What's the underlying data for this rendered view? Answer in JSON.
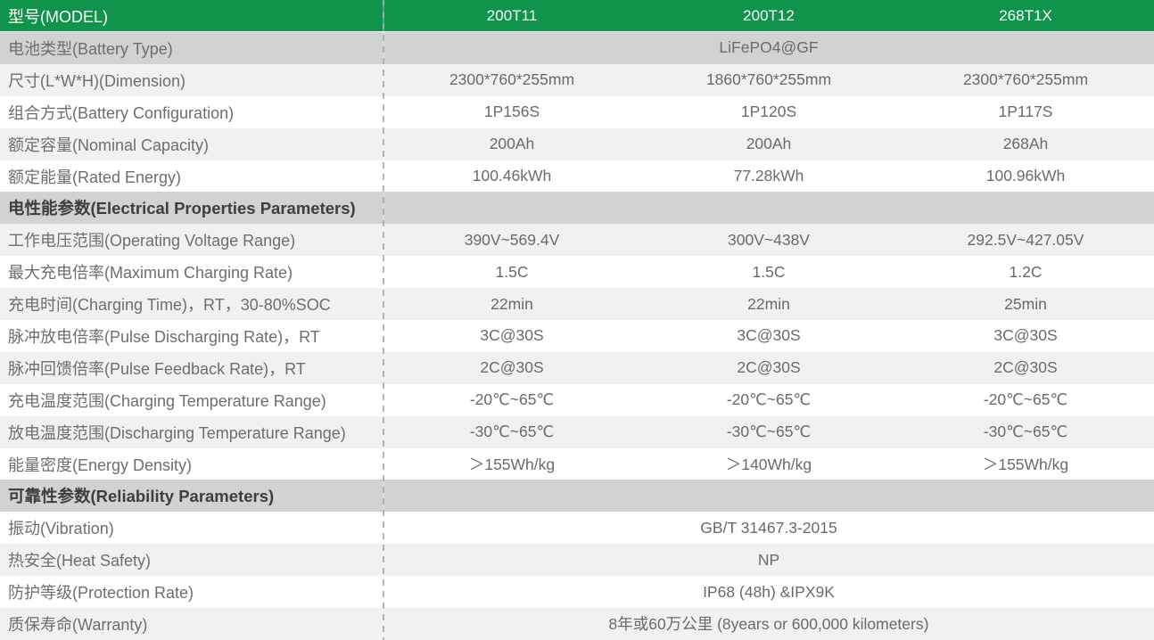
{
  "colors": {
    "header_green": "#10934a",
    "section_gray": "#d0d2d4",
    "row_alt_gray": "#eff1f3",
    "row_white": "#ffffff",
    "label_text": "#6d6e70",
    "section_text": "#3d3e40",
    "header_text": "#ffffff"
  },
  "header": {
    "label": "型号(MODEL)",
    "models": [
      "200T11",
      "200T12",
      "268T1X"
    ]
  },
  "rows": [
    {
      "label": "电池类型(Battery Type)",
      "span": "LiFePO4@GF",
      "shade": "dark"
    },
    {
      "label": "尺寸(L*W*H)(Dimension)",
      "values": [
        "2300*760*255mm",
        "1860*760*255mm",
        "2300*760*255mm"
      ],
      "shade": "light"
    },
    {
      "label": "组合方式(Battery Configuration)",
      "values": [
        "1P156S",
        "1P120S",
        "1P117S"
      ],
      "shade": "white"
    },
    {
      "label": "额定容量(Nominal Capacity)",
      "values": [
        "200Ah",
        "200Ah",
        "268Ah"
      ],
      "shade": "light"
    },
    {
      "label": "额定能量(Rated Energy)",
      "values": [
        "100.46kWh",
        "77.28kWh",
        "100.96kWh"
      ],
      "shade": "white"
    },
    {
      "label": "电性能参数(Electrical Properties Parameters)",
      "section": true,
      "shade": "dark"
    },
    {
      "label": "工作电压范围(Operating Voltage Range)",
      "values": [
        "390V~569.4V",
        "300V~438V",
        "292.5V~427.05V"
      ],
      "shade": "light"
    },
    {
      "label": "最大充电倍率(Maximum Charging Rate)",
      "values": [
        "1.5C",
        "1.5C",
        "1.2C"
      ],
      "shade": "white"
    },
    {
      "label": "充电时间(Charging Time)，RT，30-80%SOC",
      "values": [
        "22min",
        "22min",
        "25min"
      ],
      "shade": "light"
    },
    {
      "label": "脉冲放电倍率(Pulse Discharging Rate)，RT",
      "values": [
        "3C@30S",
        "3C@30S",
        "3C@30S"
      ],
      "shade": "white"
    },
    {
      "label": "脉冲回馈倍率(Pulse Feedback Rate)，RT",
      "values": [
        "2C@30S",
        "2C@30S",
        "2C@30S"
      ],
      "shade": "light"
    },
    {
      "label": "充电温度范围(Charging Temperature Range)",
      "values": [
        "-20℃~65℃",
        "-20℃~65℃",
        "-20℃~65℃"
      ],
      "shade": "white"
    },
    {
      "label": "放电温度范围(Discharging Temperature Range)",
      "values": [
        "-30℃~65℃",
        "-30℃~65℃",
        "-30℃~65℃"
      ],
      "shade": "light"
    },
    {
      "label": "能量密度(Energy Density)",
      "values": [
        "＞155Wh/kg",
        "＞140Wh/kg",
        "＞155Wh/kg"
      ],
      "shade": "white"
    },
    {
      "label": "可靠性参数(Reliability Parameters)",
      "section": true,
      "shade": "dark"
    },
    {
      "label": "振动(Vibration)",
      "span": "GB/T 31467.3-2015",
      "shade": "white"
    },
    {
      "label": "热安全(Heat Safety)",
      "span": "NP",
      "shade": "light"
    },
    {
      "label": "防护等级(Protection Rate)",
      "span": "IP68 (48h) &IPX9K",
      "shade": "white"
    },
    {
      "label": "质保寿命(Warranty)",
      "span": "8年或60万公里 (8years  or 600,000 kilometers)",
      "shade": "light"
    }
  ]
}
